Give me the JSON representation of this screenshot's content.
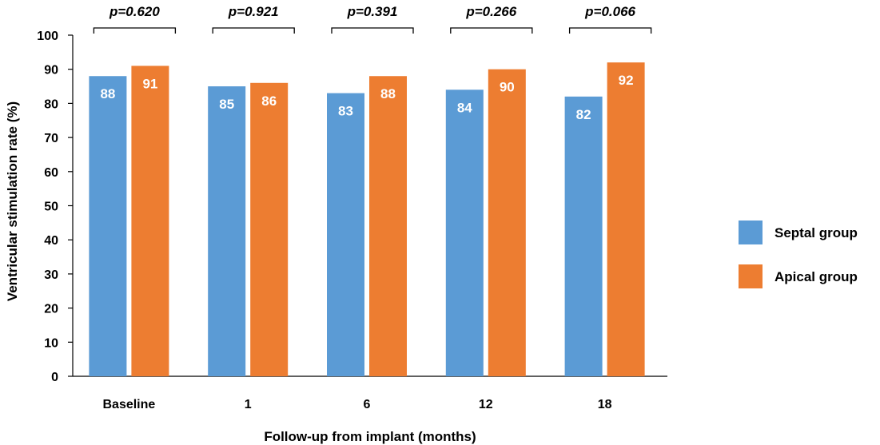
{
  "chart_data": {
    "type": "bar",
    "categories": [
      "Baseline",
      "1",
      "6",
      "12",
      "18"
    ],
    "series": [
      {
        "name": "Septal group",
        "color": "#5b9bd5",
        "values": [
          88,
          85,
          83,
          84,
          82
        ],
        "labels": [
          "88",
          "85",
          "83",
          "84",
          "82"
        ]
      },
      {
        "name": "Apical group",
        "color": "#ed7d31",
        "values": [
          91,
          86,
          88,
          90,
          92
        ],
        "labels": [
          "91",
          "86",
          "88",
          "90",
          "92"
        ]
      }
    ],
    "p_values": [
      "p=0.620",
      "p=0.921",
      "p=0.391",
      "p=0.266",
      "p=0.066"
    ],
    "xlabel": "Follow-up from implant (months)",
    "ylabel": "Ventricular stimulation rate (%)",
    "ylim": [
      0,
      100
    ],
    "yticks": [
      "0",
      "10",
      "20",
      "30",
      "40",
      "50",
      "60",
      "70",
      "80",
      "90",
      "100"
    ],
    "grid": false,
    "legend_position": "right"
  }
}
